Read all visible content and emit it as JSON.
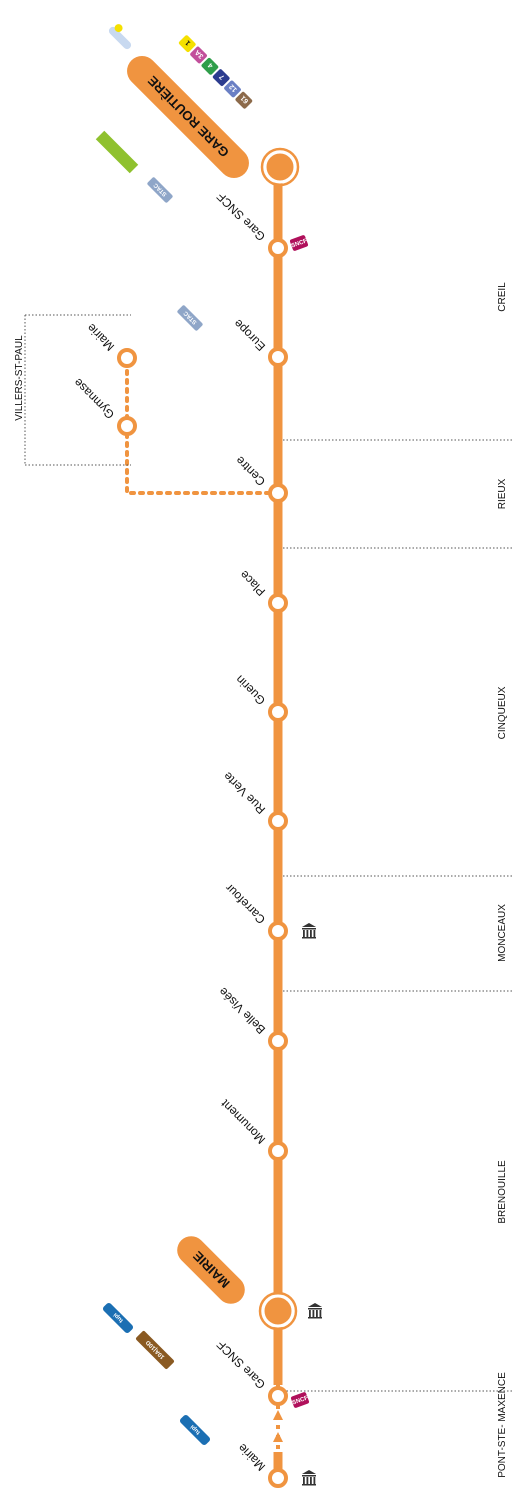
{
  "colors": {
    "line": "#f09440",
    "stop_fill": "#ffffff",
    "separator": "#666666",
    "sncf": "#b0105b",
    "oise_green": "#8fc12e",
    "tupi_blue": "#1b6fb3"
  },
  "communes": [
    "CREIL",
    "RIEUX",
    "CINQUEUX",
    "MONCEAUX",
    "BRENOUILLE",
    "PONT-STE- MAXENCE"
  ],
  "branch_commune": "VILLERS-ST-PAUL",
  "terminus_creil": {
    "label": "GARE ROUTIÈRE",
    "badges": [
      "1",
      "3A",
      "4",
      "7",
      "12",
      "61"
    ],
    "badge_colors": [
      "#f5e000",
      "#c24f9b",
      "#2f9e4a",
      "#2c3c8f",
      "#6a7fc4",
      "#8c6a4a"
    ]
  },
  "terminus_pont": {
    "label": "MAIRIE"
  },
  "stops": [
    {
      "name": "Gare SNCF",
      "icons": [
        "sncf-icon"
      ]
    },
    {
      "name": "Europe",
      "icons": []
    },
    {
      "name": "Centre",
      "icons": []
    },
    {
      "name": "Place",
      "icons": []
    },
    {
      "name": "Guerin",
      "icons": []
    },
    {
      "name": "Rue Verte",
      "icons": []
    },
    {
      "name": "Carrefour",
      "icons": [
        "town-hall-icon"
      ]
    },
    {
      "name": "Belle Visée",
      "icons": []
    },
    {
      "name": "Monument",
      "icons": []
    },
    {
      "name": "Gare SNCF",
      "icons": [
        "sncf-icon"
      ]
    },
    {
      "name": "Mairie",
      "icons": [
        "town-hall-icon"
      ]
    }
  ],
  "branch_stops": [
    "Mairie",
    "Gymnase"
  ],
  "logos": {
    "sncf": "SNCF",
    "tupi": "tupi",
    "line_badge": "10A|10D",
    "sitac": "STAC"
  }
}
